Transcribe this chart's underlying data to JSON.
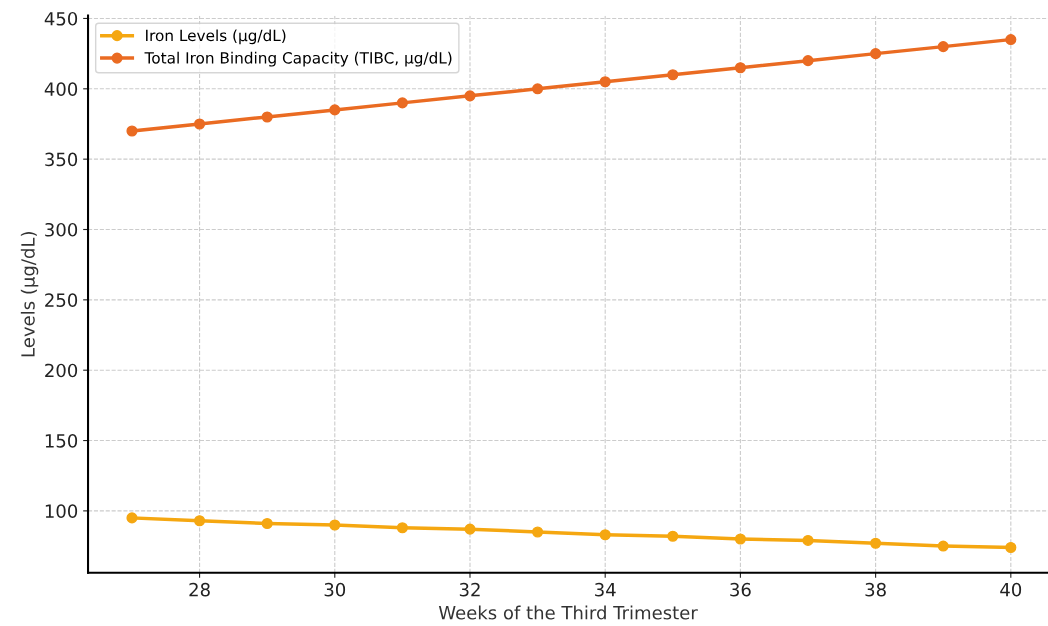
{
  "chart_data": {
    "type": "line",
    "xlabel": "Weeks of the Third Trimester",
    "ylabel": "Levels (µg/dL)",
    "x": [
      27,
      28,
      29,
      30,
      31,
      32,
      33,
      34,
      35,
      36,
      37,
      38,
      39,
      40
    ],
    "series": [
      {
        "name": "Iron Levels (µg/dL)",
        "color": "#f5a711",
        "values": [
          95,
          93,
          91,
          90,
          88,
          87,
          85,
          83,
          82,
          80,
          79,
          77,
          75,
          74
        ]
      },
      {
        "name": "Total Iron Binding Capacity (TIBC, µg/dL)",
        "color": "#ea6b22",
        "values": [
          370,
          375,
          380,
          385,
          390,
          395,
          400,
          405,
          410,
          415,
          420,
          425,
          430,
          435
        ]
      }
    ],
    "xlim": [
      26.35,
      40.55
    ],
    "ylim": [
      56,
      452
    ],
    "xticks": [
      28,
      30,
      32,
      34,
      36,
      38,
      40
    ],
    "yticks": [
      100,
      150,
      200,
      250,
      300,
      350,
      400,
      450
    ],
    "grid": true,
    "legend": "top left",
    "marker": "circle",
    "line_style": "solid"
  }
}
